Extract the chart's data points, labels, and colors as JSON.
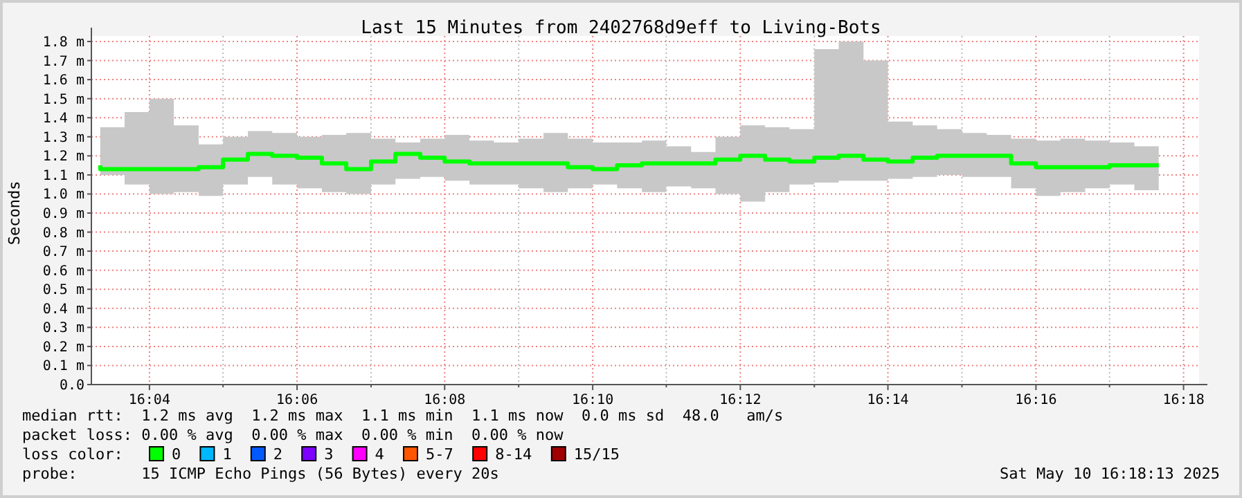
{
  "chart_data": {
    "type": "step",
    "title": "Last 15 Minutes from 2402768d9eff to Living-Bots",
    "ylabel": "Seconds",
    "legend_title": "loss color:",
    "legend": "bottom",
    "grid": true,
    "xlim": [
      16.0536,
      16.3035
    ],
    "ylim": [
      0,
      1.8
    ],
    "xticks": [
      {
        "value": 16.0667,
        "label": "16:04"
      },
      {
        "value": 16.0833,
        "label": null
      },
      {
        "value": 16.1,
        "label": "16:06"
      },
      {
        "value": 16.1167,
        "label": null
      },
      {
        "value": 16.1333,
        "label": "16:08"
      },
      {
        "value": 16.15,
        "label": null
      },
      {
        "value": 16.1667,
        "label": "16:10"
      },
      {
        "value": 16.1833,
        "label": null
      },
      {
        "value": 16.2,
        "label": "16:12"
      },
      {
        "value": 16.2167,
        "label": null
      },
      {
        "value": 16.2333,
        "label": "16:14"
      },
      {
        "value": 16.25,
        "label": null
      },
      {
        "value": 16.2667,
        "label": "16:16"
      },
      {
        "value": 16.2833,
        "label": null
      },
      {
        "value": 16.3,
        "label": "16:18"
      }
    ],
    "yticks": [
      {
        "value": 0,
        "label": "0.0"
      },
      {
        "value": 0.1,
        "label": "0.1 m"
      },
      {
        "value": 0.2,
        "label": "0.2 m"
      },
      {
        "value": 0.3,
        "label": "0.3 m"
      },
      {
        "value": 0.4,
        "label": "0.4 m"
      },
      {
        "value": 0.5,
        "label": "0.5 m"
      },
      {
        "value": 0.6,
        "label": "0.6 m"
      },
      {
        "value": 0.7,
        "label": "0.7 m"
      },
      {
        "value": 0.8,
        "label": "0.8 m"
      },
      {
        "value": 0.9,
        "label": "0.9 m"
      },
      {
        "value": 1.0,
        "label": "1.0 m"
      },
      {
        "value": 1.1,
        "label": "1.1 m"
      },
      {
        "value": 1.2,
        "label": "1.2 m"
      },
      {
        "value": 1.3,
        "label": "1.3 m"
      },
      {
        "value": 1.4,
        "label": "1.4 m"
      },
      {
        "value": 1.5,
        "label": "1.5 m"
      },
      {
        "value": 1.6,
        "label": "1.6 m"
      },
      {
        "value": 1.7,
        "label": "1.7 m"
      },
      {
        "value": 1.8,
        "label": "1.8 m"
      }
    ],
    "x": [
      16.0556,
      16.0611,
      16.0667,
      16.0722,
      16.0778,
      16.0833,
      16.0889,
      16.0944,
      16.1,
      16.1056,
      16.1111,
      16.1167,
      16.1222,
      16.1278,
      16.1333,
      16.1389,
      16.1444,
      16.15,
      16.1556,
      16.1611,
      16.1667,
      16.1722,
      16.1778,
      16.1833,
      16.1889,
      16.1944,
      16.2,
      16.2056,
      16.2111,
      16.2167,
      16.2222,
      16.2278,
      16.2333,
      16.2389,
      16.2444,
      16.25,
      16.2556,
      16.2611,
      16.2667,
      16.2722,
      16.2778,
      16.2833,
      16.2889,
      16.2944
    ],
    "series": [
      {
        "name": "0",
        "color": "#00ff00",
        "values": [
          1.15,
          1.13,
          1.13,
          1.13,
          1.13,
          1.14,
          1.18,
          1.21,
          1.2,
          1.19,
          1.16,
          1.13,
          1.17,
          1.21,
          1.19,
          1.17,
          1.16,
          1.16,
          1.16,
          1.16,
          1.14,
          1.13,
          1.15,
          1.16,
          1.16,
          1.16,
          1.18,
          1.2,
          1.18,
          1.17,
          1.19,
          1.2,
          1.18,
          1.17,
          1.19,
          1.2,
          1.2,
          1.2,
          1.16,
          1.14,
          1.14,
          1.14,
          1.15,
          1.15
        ],
        "upper": [
          1.33,
          1.35,
          1.43,
          1.5,
          1.36,
          1.26,
          1.3,
          1.33,
          1.32,
          1.3,
          1.31,
          1.32,
          1.29,
          1.27,
          1.29,
          1.31,
          1.28,
          1.27,
          1.29,
          1.32,
          1.29,
          1.27,
          1.27,
          1.28,
          1.25,
          1.22,
          1.3,
          1.36,
          1.35,
          1.34,
          1.76,
          1.8,
          1.7,
          1.38,
          1.36,
          1.34,
          1.32,
          1.31,
          1.29,
          1.28,
          1.29,
          1.28,
          1.27,
          1.25
        ],
        "lower": [
          1.1,
          1.1,
          1.05,
          1.0,
          1.01,
          0.99,
          1.05,
          1.09,
          1.05,
          1.03,
          1.01,
          1.0,
          1.05,
          1.08,
          1.09,
          1.07,
          1.05,
          1.05,
          1.03,
          1.01,
          1.03,
          1.05,
          1.03,
          1.01,
          1.04,
          1.03,
          1.0,
          0.96,
          1.01,
          1.05,
          1.06,
          1.07,
          1.07,
          1.08,
          1.09,
          1.1,
          1.09,
          1.09,
          1.03,
          0.99,
          1.01,
          1.03,
          1.05,
          1.02
        ]
      },
      {
        "name": "1",
        "color": "#00b8ff",
        "values": [
          null,
          null,
          null,
          null,
          null,
          null,
          null,
          null,
          null,
          null,
          null,
          null,
          null,
          null,
          null,
          null,
          null,
          null,
          null,
          null,
          null,
          null,
          null,
          null,
          null,
          null,
          null,
          null,
          null,
          null,
          null,
          null,
          null,
          null,
          null,
          null,
          null,
          null,
          null,
          null,
          null,
          null,
          null,
          null
        ]
      },
      {
        "name": "2",
        "color": "#0059ff",
        "values": [
          null,
          null,
          null,
          null,
          null,
          null,
          null,
          null,
          null,
          null,
          null,
          null,
          null,
          null,
          null,
          null,
          null,
          null,
          null,
          null,
          null,
          null,
          null,
          null,
          null,
          null,
          null,
          null,
          null,
          null,
          null,
          null,
          null,
          null,
          null,
          null,
          null,
          null,
          null,
          null,
          null,
          null,
          null,
          null
        ]
      },
      {
        "name": "3",
        "color": "#7e00ff",
        "values": [
          null,
          null,
          null,
          null,
          null,
          null,
          null,
          null,
          null,
          null,
          null,
          null,
          null,
          null,
          null,
          null,
          null,
          null,
          null,
          null,
          null,
          null,
          null,
          null,
          null,
          null,
          null,
          null,
          null,
          null,
          null,
          null,
          null,
          null,
          null,
          null,
          null,
          null,
          null,
          null,
          null,
          null,
          null,
          null
        ]
      },
      {
        "name": "4",
        "color": "#ff00ff",
        "values": [
          null,
          null,
          null,
          null,
          null,
          null,
          null,
          null,
          null,
          null,
          null,
          null,
          null,
          null,
          null,
          null,
          null,
          null,
          null,
          null,
          null,
          null,
          null,
          null,
          null,
          null,
          null,
          null,
          null,
          null,
          null,
          null,
          null,
          null,
          null,
          null,
          null,
          null,
          null,
          null,
          null,
          null,
          null,
          null
        ]
      },
      {
        "name": "5-7",
        "color": "#ff5500",
        "values": [
          null,
          null,
          null,
          null,
          null,
          null,
          null,
          null,
          null,
          null,
          null,
          null,
          null,
          null,
          null,
          null,
          null,
          null,
          null,
          null,
          null,
          null,
          null,
          null,
          null,
          null,
          null,
          null,
          null,
          null,
          null,
          null,
          null,
          null,
          null,
          null,
          null,
          null,
          null,
          null,
          null,
          null,
          null,
          null
        ]
      },
      {
        "name": "8-14",
        "color": "#ff0000",
        "values": [
          null,
          null,
          null,
          null,
          null,
          null,
          null,
          null,
          null,
          null,
          null,
          null,
          null,
          null,
          null,
          null,
          null,
          null,
          null,
          null,
          null,
          null,
          null,
          null,
          null,
          null,
          null,
          null,
          null,
          null,
          null,
          null,
          null,
          null,
          null,
          null,
          null,
          null,
          null,
          null,
          null,
          null,
          null,
          null
        ]
      },
      {
        "name": "15/15",
        "color": "#a10000",
        "values": [
          null,
          null,
          null,
          null,
          null,
          null,
          null,
          null,
          null,
          null,
          null,
          null,
          null,
          null,
          null,
          null,
          null,
          null,
          null,
          null,
          null,
          null,
          null,
          null,
          null,
          null,
          null,
          null,
          null,
          null,
          null,
          null,
          null,
          null,
          null,
          null,
          null,
          null,
          null,
          null,
          null,
          null,
          null,
          null
        ]
      }
    ],
    "annotations": [
      "median rtt:  1.2 ms avg  1.2 ms max  1.1 ms min  1.1 ms now  0.0 ms sd  48.0   am/s",
      "packet loss: 0.00 % avg  0.00 % max  0.00 % min  0.00 % now",
      "probe:       15 ICMP Echo Pings (56 Bytes) every 20s",
      "Sat May 10 16:18:13 2025"
    ]
  }
}
